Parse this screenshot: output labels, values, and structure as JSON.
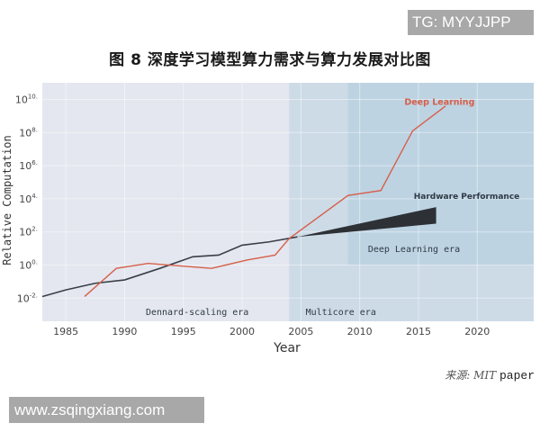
{
  "watermark_top": "TG: MYYJJPP",
  "watermark_bottom": "www.zsqingxiang.com",
  "figure_title": "图 8 深度学习模型算力需求与算力发展对比图",
  "source": {
    "prefix": "来源: MIT",
    "suffix": "paper"
  },
  "colors": {
    "deep_learning_line": "#d65f4a",
    "hardware_line": "#3a3f47",
    "hardware_band": "#2d3136",
    "dennard_bg": "#e4e7ef",
    "multicore_bg": "#cddbe7",
    "dl_era_bg": "#bdd3e2"
  },
  "chart_data": {
    "type": "line",
    "title": "图 8 深度学习模型算力需求与算力发展对比图",
    "xlabel": "Year",
    "ylabel": "Relative Computation",
    "xlim": [
      1983,
      2024.8
    ],
    "ylim_log10": [
      -3,
      10.5
    ],
    "yscale": "log",
    "x_ticks": [
      1985,
      1990,
      1995,
      2000,
      2005,
      2010,
      2015,
      2020
    ],
    "y_ticks": [
      "10^-2",
      "10^0",
      "10^2",
      "10^4",
      "10^6",
      "10^8",
      "10^10"
    ],
    "y_tick_exponents": [
      -2,
      0,
      2,
      4,
      6,
      8,
      10
    ],
    "grid": true,
    "regions": [
      {
        "label": "Dennard-scaling era",
        "x_start": 1983,
        "x_end": 2004
      },
      {
        "label": "Multicore era",
        "x_start": 2004,
        "x_end": 2024.8
      },
      {
        "label": "Deep Learning era",
        "x_start": 2009,
        "x_end": 2024.8,
        "y_start_log10": 0,
        "y_end_log10": 10.5
      }
    ],
    "series": [
      {
        "name": "Deep Learning",
        "x": [
          1986.6,
          1989.3,
          1992,
          1997.4,
          2000.4,
          2002.8,
          2004,
          2009,
          2011.8,
          2014.5,
          2017.3
        ],
        "log10_y": [
          -1.9,
          -0.2,
          0.1,
          -0.2,
          0.3,
          0.6,
          1.6,
          4.2,
          4.5,
          8.1,
          9.6
        ]
      },
      {
        "name": "Hardware Performance (historical)",
        "x": [
          1983,
          1985,
          1987.5,
          1990,
          1993,
          1995.8,
          1998,
          2000,
          2002.3,
          2004.7
        ],
        "log10_y": [
          -1.9,
          -1.5,
          -1.1,
          -0.9,
          -0.2,
          0.5,
          0.6,
          1.2,
          1.4,
          1.7
        ]
      },
      {
        "name": "Hardware Performance (projected band)",
        "x": [
          2004.7,
          2016.5
        ],
        "log10_y_upper": [
          1.7,
          3.5
        ],
        "log10_y_lower": [
          1.7,
          2.5
        ]
      }
    ],
    "annotations": [
      {
        "text": "Deep Learning",
        "x": 2013.8,
        "log10_y": 9.9,
        "color": "#d65f4a"
      },
      {
        "text": "Hardware Performance",
        "x": 2014.6,
        "log10_y": 4.2
      },
      {
        "text": "Deep Learning era",
        "x": 2010.7,
        "log10_y": 1.0
      },
      {
        "text": "Multicore era",
        "x": 2005.4,
        "log10_y": -2.8
      },
      {
        "text": "Dennard-scaling era",
        "x": 1991.8,
        "log10_y": -2.8
      }
    ]
  }
}
